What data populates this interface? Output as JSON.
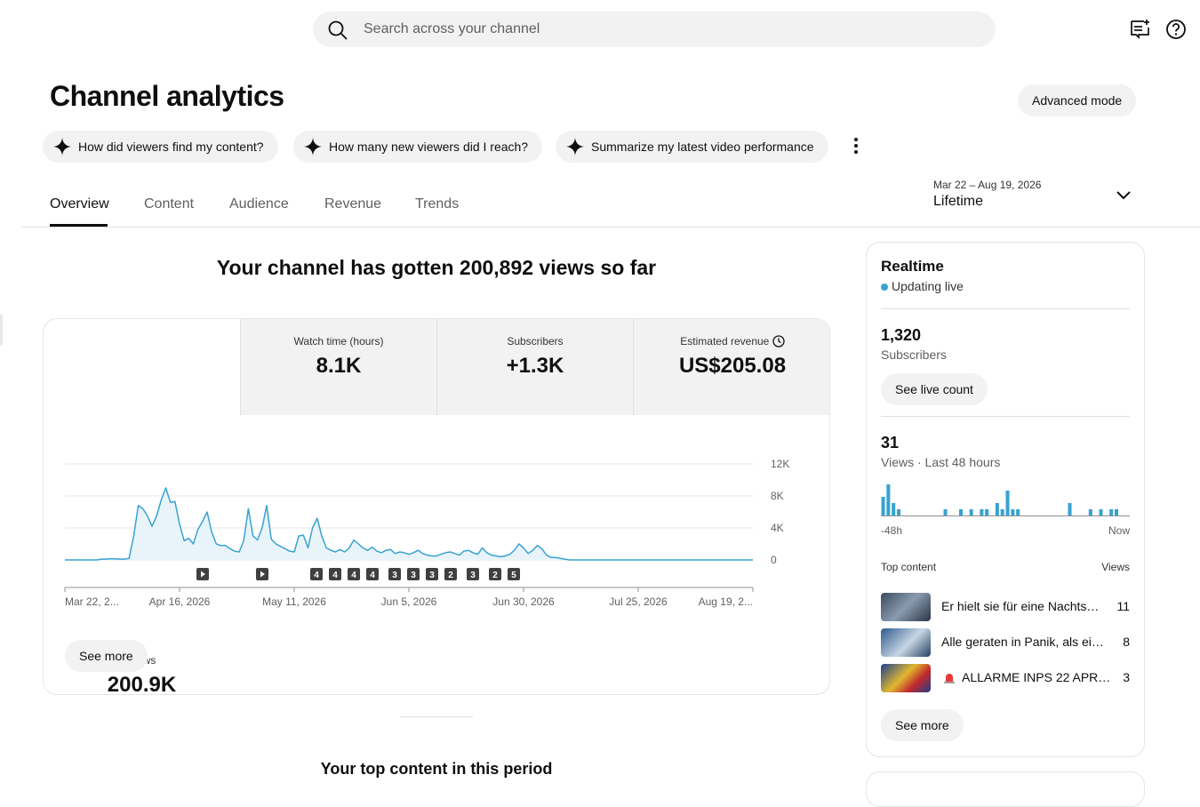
{
  "search": {
    "placeholder": "Search across your channel"
  },
  "header": {
    "title": "Channel analytics",
    "advanced_mode": "Advanced mode"
  },
  "suggestions": [
    "How did viewers find my content?",
    "How many new viewers did I reach?",
    "Summarize my latest video performance"
  ],
  "tabs": [
    "Overview",
    "Content",
    "Audience",
    "Revenue",
    "Trends"
  ],
  "date_range": {
    "range": "Mar 22 – Aug 19, 2026",
    "period": "Lifetime"
  },
  "headline": "Your channel has gotten 200,892 views so far",
  "metrics": [
    {
      "label": "Views",
      "value": "200.9K"
    },
    {
      "label": "Watch time (hours)",
      "value": "8.1K"
    },
    {
      "label": "Subscribers",
      "value": "+1.3K"
    },
    {
      "label": "Estimated revenue",
      "value": "US$205.08"
    }
  ],
  "markers": [
    "4",
    "4",
    "4",
    "4",
    "3",
    "3",
    "3",
    "2",
    "3",
    "2",
    "5"
  ],
  "see_more": "See more",
  "chart_data": [
    {
      "type": "line",
      "color": "#37a3d1",
      "grid": true,
      "ylim": [
        0,
        12000
      ],
      "yticks": [
        0,
        {
          "value": 4000,
          "label": "4K"
        },
        {
          "value": 8000,
          "label": "8K"
        },
        {
          "value": 12000,
          "label": "12K"
        }
      ],
      "categories": [
        "Mar 22, 2...",
        null,
        null,
        null,
        null,
        null,
        null,
        null,
        null,
        null,
        null,
        null,
        null,
        null,
        null,
        null,
        null,
        null,
        null,
        null,
        null,
        null,
        null,
        null,
        null,
        "Apr 16, 2026",
        null,
        null,
        null,
        null,
        null,
        null,
        null,
        null,
        null,
        null,
        null,
        null,
        null,
        null,
        null,
        null,
        null,
        null,
        null,
        null,
        null,
        null,
        null,
        null,
        "May 11, 2026",
        null,
        null,
        null,
        null,
        null,
        null,
        null,
        null,
        null,
        null,
        null,
        null,
        null,
        null,
        null,
        null,
        null,
        null,
        null,
        null,
        null,
        null,
        null,
        null,
        "Jun 5, 2026",
        null,
        null,
        null,
        null,
        null,
        null,
        null,
        null,
        null,
        null,
        null,
        null,
        null,
        null,
        null,
        null,
        null,
        null,
        null,
        null,
        null,
        null,
        null,
        null,
        "Jun 30, 2026",
        null,
        null,
        null,
        null,
        null,
        null,
        null,
        null,
        null,
        null,
        null,
        null,
        null,
        null,
        null,
        null,
        null,
        null,
        null,
        null,
        null,
        null,
        null,
        null,
        "Jul 25, 2026",
        null,
        null,
        null,
        null,
        null,
        null,
        null,
        null,
        null,
        null,
        null,
        null,
        null,
        null,
        null,
        null,
        null,
        null,
        null,
        null,
        null,
        null,
        null,
        null,
        "Aug 19, 2..."
      ],
      "values": [
        0,
        0,
        0,
        0,
        0,
        0,
        0,
        0,
        100,
        100,
        150,
        150,
        100,
        100,
        200,
        3000,
        6800,
        6400,
        5500,
        4200,
        5500,
        7500,
        9000,
        7200,
        7300,
        4500,
        2400,
        2700,
        2000,
        3800,
        4800,
        6000,
        3500,
        2000,
        1800,
        1800,
        1400,
        1100,
        1000,
        2400,
        6400,
        3000,
        2500,
        4000,
        6800,
        2600,
        2000,
        1700,
        1400,
        1100,
        1000,
        3000,
        3100,
        1500,
        4000,
        5200,
        3000,
        1500,
        1200,
        1000,
        1300,
        1000,
        1500,
        2500,
        2000,
        1500,
        1200,
        1600,
        1100,
        900,
        1200,
        1300,
        800,
        1000,
        900,
        700,
        900,
        1200,
        800,
        600,
        500,
        500,
        700,
        900,
        1000,
        800,
        600,
        1100,
        1200,
        900,
        700,
        1500,
        900,
        600,
        500,
        400,
        500,
        700,
        1200,
        2000,
        1500,
        800,
        1200,
        1800,
        1400,
        600,
        300,
        300,
        200,
        100,
        0,
        0,
        0,
        0,
        0,
        0,
        0,
        0,
        0,
        0,
        0,
        0,
        0,
        0,
        0,
        0,
        0,
        0,
        0,
        0,
        0,
        0,
        0,
        0,
        0,
        0,
        0,
        0,
        0,
        0,
        0,
        0,
        0,
        0,
        0,
        0,
        0,
        0,
        0,
        0,
        0
      ]
    },
    {
      "type": "bar",
      "color": "#37a3d1",
      "ylim": [
        0,
        5
      ],
      "axis_labels": [
        "-48h",
        "Now"
      ],
      "values": [
        3,
        5,
        2,
        1,
        0,
        0,
        0,
        0,
        0,
        0,
        0,
        0,
        1,
        0,
        0,
        1,
        0,
        1,
        0,
        1,
        1,
        0,
        2,
        1,
        4,
        1,
        1,
        0,
        0,
        0,
        0,
        0,
        0,
        0,
        0,
        0,
        2,
        0,
        0,
        0,
        1,
        0,
        1,
        0,
        1,
        1,
        0,
        0
      ]
    }
  ],
  "realtime": {
    "title": "Realtime",
    "status": "Updating live",
    "subscribers": {
      "value": "1,320",
      "label": "Subscribers",
      "button": "See live count"
    },
    "views": {
      "value": "31",
      "label": "Views · Last 48 hours"
    },
    "top_content": {
      "header": "Top content",
      "views_header": "Views",
      "rows": [
        {
          "title": "Er hielt sie für eine Nachts…",
          "views": "11"
        },
        {
          "title": "Alle geraten in Panik, als ei…",
          "views": "8"
        },
        {
          "title": "ALLARME INPS 22 APR…",
          "views": "3"
        }
      ]
    },
    "see_more": "See more"
  },
  "next_section": "Your top content in this period"
}
